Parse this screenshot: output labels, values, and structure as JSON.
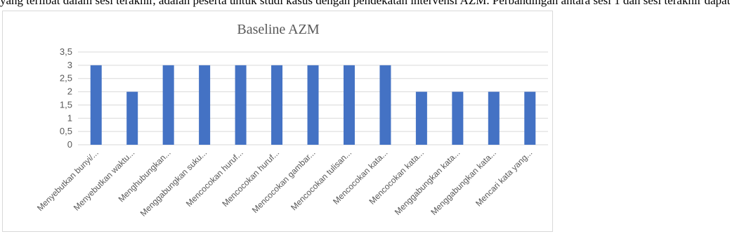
{
  "document": {
    "top_text": "yang terlibat dalam sesi terakhir, adalah peserta untuk studi kasus dengan pendekatan intervensi AZM. Perbandingan antara sesi 1 dan sesi terakhir dapat"
  },
  "chart_data": {
    "type": "bar",
    "title": "Baseline AZM",
    "xlabel": "",
    "ylabel": "",
    "ylim": [
      0,
      3.5
    ],
    "yticks": [
      "0",
      "0,5",
      "1",
      "1,5",
      "2",
      "2,5",
      "3",
      "3,5"
    ],
    "ytick_values": [
      0,
      0.5,
      1,
      1.5,
      2,
      2.5,
      3,
      3.5
    ],
    "grid": true,
    "legend": "none",
    "bar_color": "#4472c4",
    "categories": [
      "Menyebutkan bunyi/...",
      "Menyebutkan waktu...",
      "Menghubungkan...",
      "Menggabungkan suku...",
      "Mencocokan huruf...",
      "Mencocokan huruf...",
      "Mencocokan gambar...",
      "Mencocokan tulisan...",
      "Mencocokan kata...",
      "Mencocokan kata...",
      "Menggabungkan kata...",
      "Menggabungkan kata...",
      "Mencari kata yang..."
    ],
    "values": [
      3,
      2,
      3,
      3,
      3,
      3,
      3,
      3,
      3,
      2,
      2,
      2,
      2
    ]
  }
}
